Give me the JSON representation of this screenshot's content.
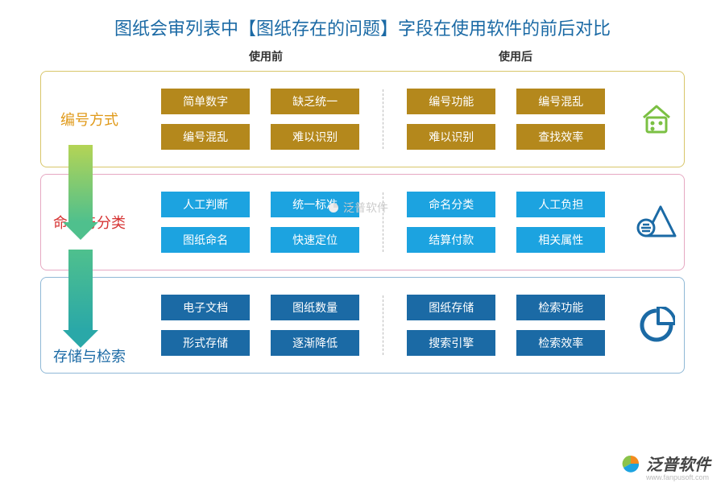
{
  "title": {
    "text": "图纸会审列表中【图纸存在的问题】字段在使用软件的前后对比",
    "color": "#1b6aa5"
  },
  "columns": {
    "before": "使用前",
    "after": "使用后"
  },
  "rows": [
    {
      "label": "编号方式",
      "label_color": "#e09a1a",
      "border_color": "#d8c66a",
      "tag_bg": "#b4881c",
      "icon": "house",
      "icon_color": "#7bc043",
      "before": [
        "简单数字",
        "缺乏统一",
        "编号混乱",
        "难以识别"
      ],
      "after": [
        "编号功能",
        "编号混乱",
        "难以识别",
        "查找效率"
      ]
    },
    {
      "label": "命名与分类",
      "label_color": "#d63333",
      "border_color": "#e6a8c2",
      "tag_bg": "#1ca3e0",
      "icon": "triangle",
      "icon_color": "#1b6aa5",
      "before": [
        "人工判断",
        "统一标准",
        "图纸命名",
        "快速定位"
      ],
      "after": [
        "命名分类",
        "人工负担",
        "结算付款",
        "相关属性"
      ]
    },
    {
      "label": "存储与检索",
      "label_color": "#1b6aa5",
      "border_color": "#8fb8d6",
      "tag_bg": "#1b6aa5",
      "icon": "pie",
      "icon_color": "#1b6aa5",
      "before": [
        "电子文档",
        "图纸数量",
        "形式存储",
        "逐渐降低"
      ],
      "after": [
        "图纸存储",
        "检索功能",
        "搜索引擎",
        "检索效率"
      ]
    }
  ],
  "arrows": [
    {
      "from_color": "#b4d455",
      "to_color": "#4fc08d",
      "body_h": 96,
      "head_color": "#4fc08d"
    },
    {
      "from_color": "#4fc08d",
      "to_color": "#2aa8a8",
      "body_h": 100,
      "head_color": "#2aa8a8"
    }
  ],
  "watermark": "泛普软件",
  "footer": {
    "brand": "泛普软件",
    "url": "www.fanpusoft.com",
    "accent": "#f28b1e"
  }
}
